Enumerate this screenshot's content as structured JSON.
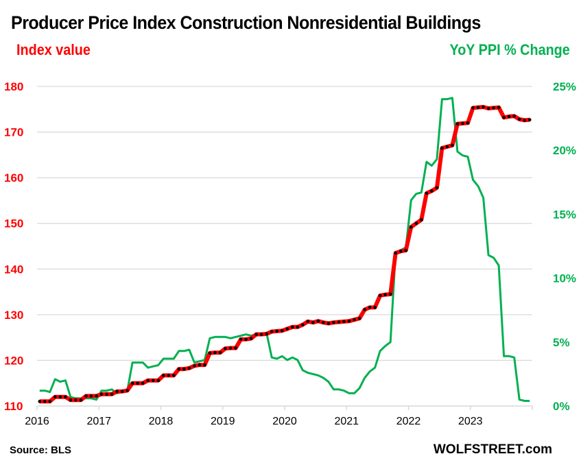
{
  "chart_data": {
    "type": "line",
    "title": "Producer Price Index Construction Nonresidential Buildings",
    "left_axis_label": "Index value",
    "right_axis_label": "YoY PPI % Change",
    "source": "Source: BLS",
    "brand": "WOLFSTREET.com",
    "x_start": "2016-01",
    "x_end": "2023-12",
    "x_ticks": [
      "2016",
      "2017",
      "2018",
      "2019",
      "2020",
      "2021",
      "2022",
      "2023"
    ],
    "y_left": {
      "min": 110,
      "max": 180,
      "ticks": [
        "110",
        "120",
        "130",
        "140",
        "150",
        "160",
        "170",
        "180"
      ]
    },
    "y_right": {
      "min": 0,
      "max": 25,
      "ticks": [
        "0%",
        "5%",
        "10%",
        "15%",
        "20%",
        "25%"
      ]
    },
    "grid": true,
    "colors": {
      "index": "#ff0000",
      "index_dots": "#000000",
      "yoy": "#00b050",
      "grid": "#d9d9d9",
      "left_axis": "#ff0000",
      "right_axis": "#00b050"
    },
    "series": [
      {
        "name": "Index value",
        "axis": "left",
        "values": [
          111.0,
          111.0,
          111.0,
          112.0,
          112.0,
          112.0,
          111.3,
          111.3,
          111.3,
          112.2,
          112.2,
          112.2,
          112.6,
          112.6,
          112.6,
          113.2,
          113.2,
          113.4,
          115.0,
          115.0,
          115.0,
          115.6,
          115.6,
          115.6,
          116.7,
          116.7,
          116.7,
          118.1,
          118.1,
          118.3,
          118.8,
          119.0,
          119.0,
          121.6,
          121.7,
          121.7,
          122.6,
          122.7,
          122.7,
          124.6,
          124.6,
          124.8,
          125.7,
          125.7,
          125.8,
          126.3,
          126.4,
          126.5,
          126.9,
          127.3,
          127.3,
          127.8,
          128.5,
          128.3,
          128.6,
          128.3,
          128.1,
          128.3,
          128.4,
          128.5,
          128.6,
          128.9,
          129.2,
          131.1,
          131.6,
          131.6,
          134.2,
          134.4,
          134.5,
          143.5,
          143.9,
          144.1,
          149.2,
          150.0,
          150.8,
          156.6,
          157.1,
          157.8,
          166.5,
          166.8,
          167.1,
          171.8,
          171.9,
          172.0,
          175.3,
          175.4,
          175.5,
          175.2,
          175.3,
          175.4,
          173.2,
          173.4,
          173.5,
          172.8,
          172.6,
          172.7
        ]
      },
      {
        "name": "YoY PPI % Change",
        "axis": "right",
        "values": [
          1.2,
          1.2,
          1.1,
          2.1,
          1.9,
          2.0,
          0.7,
          0.6,
          0.6,
          0.6,
          0.6,
          0.5,
          1.2,
          1.2,
          1.3,
          1.0,
          1.1,
          1.2,
          3.4,
          3.4,
          3.4,
          3.0,
          3.1,
          3.2,
          3.7,
          3.7,
          3.7,
          4.3,
          4.3,
          4.4,
          3.4,
          3.5,
          3.6,
          5.3,
          5.4,
          5.4,
          5.4,
          5.3,
          5.4,
          5.5,
          5.6,
          5.5,
          5.6,
          5.6,
          5.7,
          3.8,
          3.7,
          3.9,
          3.6,
          3.8,
          3.6,
          2.8,
          2.6,
          2.5,
          2.4,
          2.2,
          1.9,
          1.3,
          1.3,
          1.2,
          1.0,
          1.0,
          1.4,
          2.2,
          2.7,
          3.0,
          4.3,
          4.7,
          5.0,
          12.0,
          12.2,
          12.4,
          16.1,
          16.6,
          16.7,
          19.1,
          18.8,
          19.3,
          24.0,
          24.0,
          24.1,
          19.9,
          19.6,
          19.5,
          17.7,
          17.2,
          16.3,
          11.8,
          11.6,
          11.0,
          3.9,
          3.9,
          3.8,
          0.5,
          0.4,
          0.4
        ]
      }
    ]
  }
}
